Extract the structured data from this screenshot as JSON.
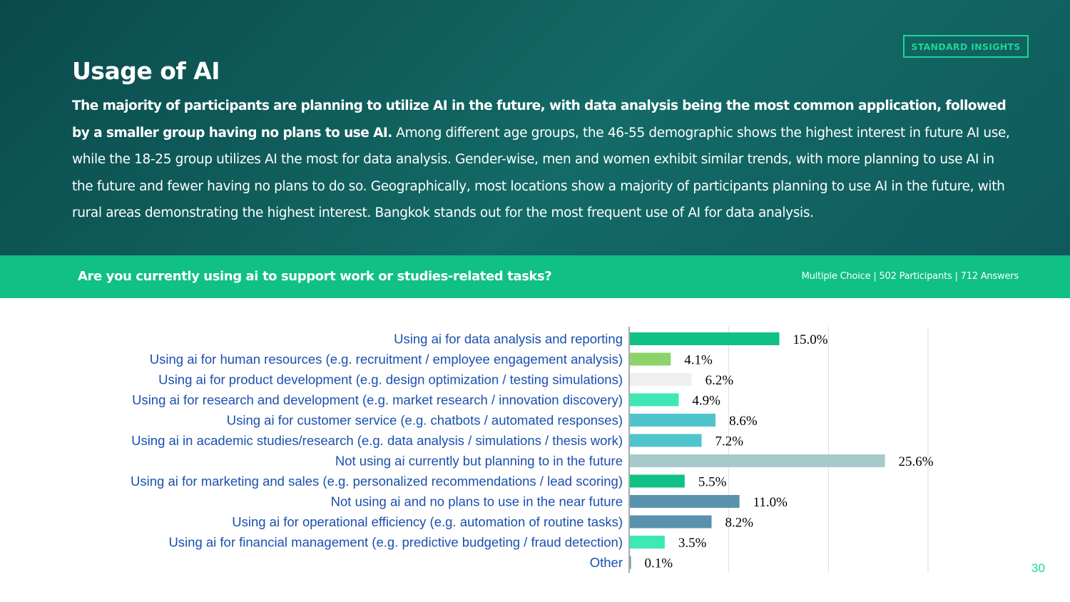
{
  "header": {
    "badge": "STANDARD INSIGHTS",
    "title": "Usage of AI",
    "summary_lead": "The majority of participants are planning to utilize AI in the future, with data analysis being the most common application, followed by a smaller group having no plans to use AI.",
    "summary_rest": " Among different age groups, the 46-55 demographic shows the highest interest in future AI use, while the 18-25 group utilizes AI the most for data analysis. Gender-wise, men and women exhibit similar trends, with more planning to use AI in the future and fewer having no plans to do so. Geographically, most locations show a majority of participants planning to use AI in the future, with rural areas demonstrating the highest interest. Bangkok stands out for the most frequent use of AI for data analysis."
  },
  "question_bar": {
    "question": "Are you currently using ai to support work or studies-related tasks?",
    "meta": "Multiple  Choice |  502 Participants  | 712 Answers"
  },
  "page_number": "30",
  "chart_data": {
    "type": "bar",
    "orientation": "horizontal",
    "categories": [
      "Using ai for data analysis and reporting",
      "Using ai for human resources (e.g. recruitment / employee engagement analysis)",
      "Using ai for product development (e.g. design optimization / testing simulations)",
      "Using ai for research and development (e.g. market research / innovation discovery)",
      "Using ai for customer service (e.g. chatbots / automated responses)",
      "Using ai in academic studies/research (e.g. data analysis / simulations / thesis work)",
      "Not using ai currently but planning to in the future",
      "Using ai for marketing and sales (e.g. personalized recommendations / lead scoring)",
      "Not using ai and no plans to use in the near future",
      "Using ai for operational efficiency (e.g. automation of routine tasks)",
      "Using ai for financial management (e.g. predictive budgeting / fraud detection)",
      "Other"
    ],
    "values": [
      15.0,
      4.1,
      6.2,
      4.9,
      8.6,
      7.2,
      25.6,
      5.5,
      11.0,
      8.2,
      3.5,
      0.1
    ],
    "labels": [
      "15.0%",
      "4.1%",
      "6.2%",
      "4.9%",
      "8.6%",
      "7.2%",
      "25.6%",
      "5.5%",
      "11.0%",
      "8.2%",
      "3.5%",
      "0.1%"
    ],
    "colors": [
      "#10c084",
      "#8cd46a",
      "#efefef",
      "#3de8b4",
      "#4fc4cc",
      "#4fc4cc",
      "#a7c9cb",
      "#10c084",
      "#5a91ad",
      "#5a91ad",
      "#3de8b4",
      "#5a91ad"
    ],
    "xlim": [
      0,
      30
    ],
    "grid": true,
    "gridline_values": [
      10,
      20,
      30
    ],
    "legend": "none"
  }
}
